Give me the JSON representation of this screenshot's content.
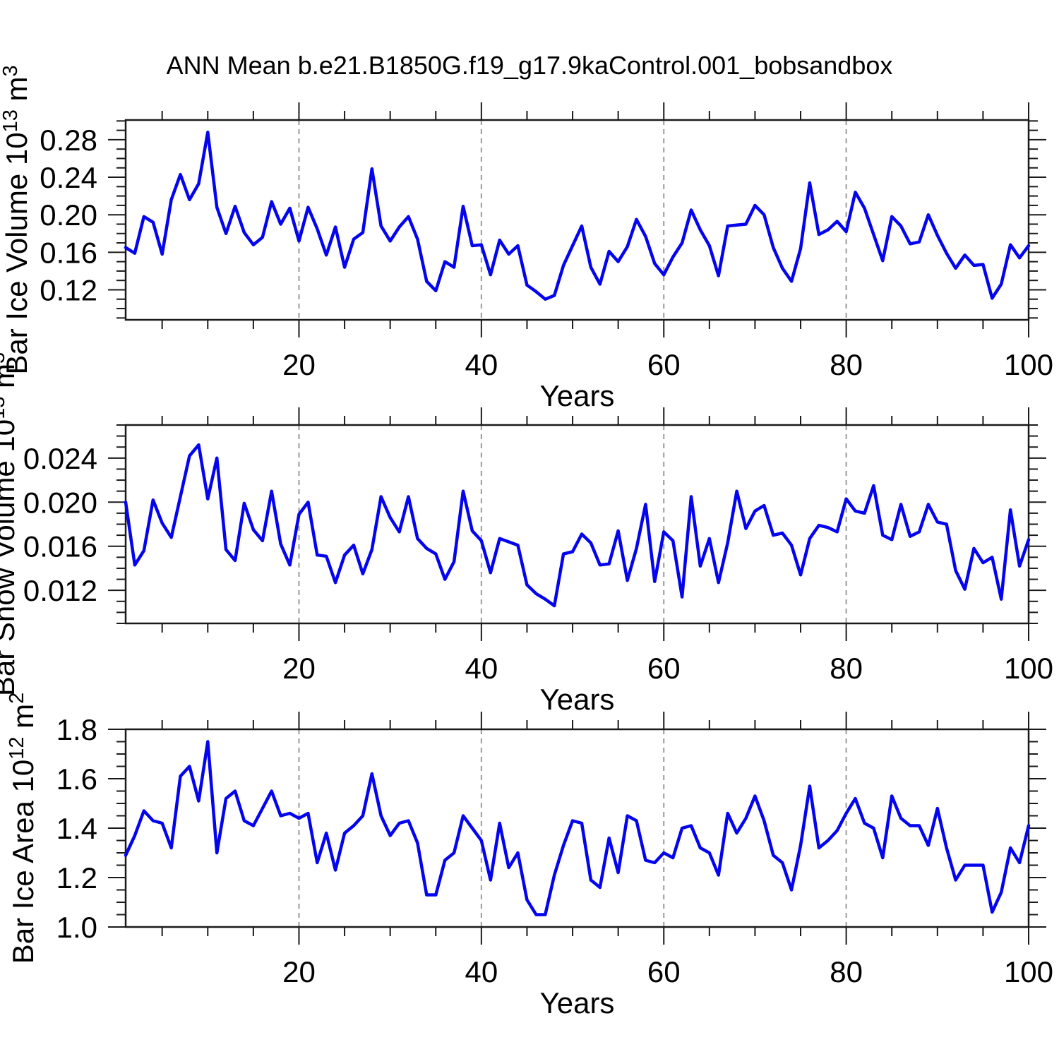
{
  "title": "ANN Mean b.e21.B1850G.f19_g17.9kaControl.001_bobsandbox",
  "xlabel": "Years",
  "colors": {
    "line": "#0404ee",
    "frame": "#1a1a1a",
    "grid": "#999999",
    "text": "#000000",
    "background": "#ffffff"
  },
  "x_domain": {
    "min": 1,
    "max": 100
  },
  "xticks": {
    "values": [
      20,
      40,
      60,
      80,
      100
    ],
    "labels": [
      "20",
      "40",
      "60",
      "80",
      "100"
    ],
    "minor_step": 5
  },
  "grid_x": [
    20,
    40,
    60,
    80
  ],
  "chart_data": [
    {
      "id": "ice-volume",
      "type": "line",
      "ylabel": "Bar Ice Volume 10^13 m^3",
      "ylabel_parts": [
        {
          "t": "Bar Ice Volume 10"
        },
        {
          "t": "13",
          "sup": true
        },
        {
          "t": " m"
        },
        {
          "t": "3",
          "sup": true
        }
      ],
      "xlabel": "Years",
      "ylim": [
        0.088,
        0.301
      ],
      "ytick_values": [
        0.12,
        0.16,
        0.2,
        0.24,
        0.28
      ],
      "ytick_labels": [
        "0.12",
        "0.16",
        "0.20",
        "0.24",
        "0.28"
      ],
      "ytick_minor_step": 0.01,
      "x_start": 1,
      "values": [
        0.165,
        0.159,
        0.198,
        0.192,
        0.158,
        0.216,
        0.243,
        0.216,
        0.233,
        0.288,
        0.208,
        0.18,
        0.209,
        0.181,
        0.168,
        0.176,
        0.214,
        0.19,
        0.207,
        0.172,
        0.208,
        0.185,
        0.157,
        0.187,
        0.144,
        0.174,
        0.181,
        0.249,
        0.188,
        0.172,
        0.187,
        0.198,
        0.174,
        0.129,
        0.119,
        0.15,
        0.144,
        0.209,
        0.167,
        0.168,
        0.136,
        0.173,
        0.158,
        0.167,
        0.125,
        0.118,
        0.11,
        0.114,
        0.146,
        0.167,
        0.188,
        0.144,
        0.126,
        0.161,
        0.15,
        0.166,
        0.195,
        0.177,
        0.148,
        0.136,
        0.155,
        0.17,
        0.205,
        0.184,
        0.167,
        0.135,
        0.188,
        0.189,
        0.19,
        0.21,
        0.2,
        0.165,
        0.143,
        0.129,
        0.164,
        0.234,
        0.179,
        0.184,
        0.193,
        0.182,
        0.224,
        0.207,
        0.179,
        0.151,
        0.198,
        0.188,
        0.169,
        0.171,
        0.2,
        0.178,
        0.159,
        0.143,
        0.157,
        0.146,
        0.147,
        0.111,
        0.126,
        0.168,
        0.154,
        0.167
      ]
    },
    {
      "id": "snow-volume",
      "type": "line",
      "ylabel": "Bar Snow Volume 10^13 m^3",
      "ylabel_parts": [
        {
          "t": "Bar Snow Volume 10"
        },
        {
          "t": "13",
          "sup": true
        },
        {
          "t": " m"
        },
        {
          "t": "3",
          "sup": true
        }
      ],
      "xlabel": "Years",
      "ylim": [
        0.009,
        0.027
      ],
      "ytick_values": [
        0.012,
        0.016,
        0.02,
        0.024
      ],
      "ytick_labels": [
        "0.012",
        "0.016",
        "0.020",
        "0.024"
      ],
      "ytick_minor_step": 0.001,
      "x_start": 1,
      "values": [
        0.02,
        0.0143,
        0.0156,
        0.0202,
        0.0181,
        0.0168,
        0.0205,
        0.0242,
        0.0252,
        0.0203,
        0.024,
        0.0157,
        0.0147,
        0.0199,
        0.0175,
        0.0165,
        0.021,
        0.0162,
        0.0143,
        0.0189,
        0.02,
        0.0152,
        0.0151,
        0.0127,
        0.0152,
        0.0161,
        0.0135,
        0.0157,
        0.0205,
        0.0186,
        0.0173,
        0.0205,
        0.0167,
        0.0158,
        0.0153,
        0.013,
        0.0146,
        0.021,
        0.0174,
        0.0165,
        0.0136,
        0.0167,
        0.0164,
        0.0161,
        0.0125,
        0.0117,
        0.0112,
        0.0106,
        0.0153,
        0.0155,
        0.0171,
        0.0163,
        0.0143,
        0.0144,
        0.0174,
        0.0129,
        0.0158,
        0.0198,
        0.0128,
        0.0173,
        0.0165,
        0.0114,
        0.0205,
        0.0142,
        0.0167,
        0.0127,
        0.0163,
        0.021,
        0.0176,
        0.0192,
        0.0197,
        0.017,
        0.0172,
        0.0161,
        0.0134,
        0.0167,
        0.0179,
        0.0177,
        0.0173,
        0.0203,
        0.0192,
        0.019,
        0.0215,
        0.017,
        0.0166,
        0.0198,
        0.0169,
        0.0173,
        0.0198,
        0.0182,
        0.018,
        0.0138,
        0.0121,
        0.0158,
        0.0145,
        0.015,
        0.0112,
        0.0193,
        0.0142,
        0.0166
      ]
    },
    {
      "id": "ice-area",
      "type": "line",
      "ylabel": "Bar Ice Area 10^12 m^2",
      "ylabel_parts": [
        {
          "t": "Bar Ice Area 10"
        },
        {
          "t": "12",
          "sup": true
        },
        {
          "t": " m"
        },
        {
          "t": "2",
          "sup": true
        }
      ],
      "xlabel": "Years",
      "ylim": [
        1.0,
        1.8
      ],
      "ytick_values": [
        1.0,
        1.2,
        1.4,
        1.6,
        1.8
      ],
      "ytick_labels": [
        "1.0",
        "1.2",
        "1.4",
        "1.6",
        "1.8"
      ],
      "ytick_minor_step": 0.05,
      "x_start": 1,
      "values": [
        1.29,
        1.37,
        1.47,
        1.43,
        1.42,
        1.32,
        1.61,
        1.65,
        1.51,
        1.75,
        1.3,
        1.52,
        1.55,
        1.43,
        1.41,
        1.48,
        1.55,
        1.45,
        1.46,
        1.44,
        1.46,
        1.26,
        1.38,
        1.23,
        1.38,
        1.41,
        1.45,
        1.62,
        1.45,
        1.37,
        1.42,
        1.43,
        1.34,
        1.13,
        1.13,
        1.27,
        1.3,
        1.45,
        1.4,
        1.35,
        1.19,
        1.42,
        1.24,
        1.3,
        1.11,
        1.05,
        1.05,
        1.21,
        1.33,
        1.43,
        1.42,
        1.19,
        1.16,
        1.36,
        1.22,
        1.45,
        1.43,
        1.27,
        1.26,
        1.3,
        1.28,
        1.4,
        1.41,
        1.32,
        1.3,
        1.21,
        1.46,
        1.38,
        1.44,
        1.53,
        1.43,
        1.29,
        1.26,
        1.15,
        1.33,
        1.57,
        1.32,
        1.35,
        1.39,
        1.46,
        1.52,
        1.42,
        1.4,
        1.28,
        1.53,
        1.44,
        1.41,
        1.41,
        1.33,
        1.48,
        1.32,
        1.19,
        1.25,
        1.25,
        1.25,
        1.06,
        1.14,
        1.32,
        1.26,
        1.41
      ]
    }
  ]
}
